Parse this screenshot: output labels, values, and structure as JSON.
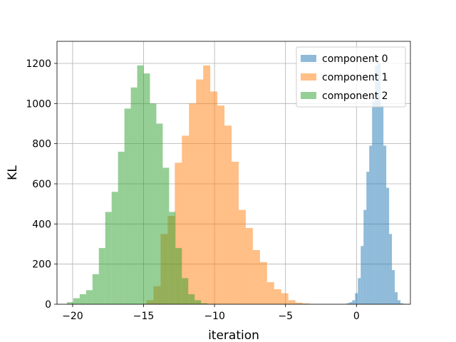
{
  "chart_data": {
    "type": "bar",
    "subtype": "histogram",
    "xlabel": "iteration",
    "ylabel": "KL",
    "xlim": [
      -21.1,
      3.8
    ],
    "ylim": [
      0,
      1310
    ],
    "xticks": [
      -20,
      -15,
      -10,
      -5,
      0
    ],
    "xtick_labels": [
      "−20",
      "−15",
      "−10",
      "−5",
      "0"
    ],
    "yticks": [
      0,
      200,
      400,
      600,
      800,
      1000,
      1200
    ],
    "ytick_labels": [
      "0",
      "200",
      "400",
      "600",
      "800",
      "1000",
      "1200"
    ],
    "grid": true,
    "legend_placement": "upper-right",
    "series": [
      {
        "name": "component 0",
        "color": "#1f77b4",
        "alpha": 0.5,
        "bin_start": -0.7,
        "bin_width": 0.2,
        "counts": [
          5,
          10,
          20,
          55,
          130,
          290,
          470,
          660,
          790,
          1010,
          1190,
          1200,
          990,
          790,
          580,
          350,
          170,
          60,
          20,
          5
        ]
      },
      {
        "name": "component 1",
        "color": "#ff7f0e",
        "alpha": 0.5,
        "bin_start": -14.8,
        "bin_width": 0.5,
        "counts": [
          20,
          90,
          350,
          440,
          705,
          840,
          1000,
          1120,
          1190,
          1060,
          990,
          890,
          710,
          470,
          380,
          270,
          210,
          110,
          75,
          55,
          20,
          8,
          4
        ]
      },
      {
        "name": "component 2",
        "color": "#2ca02c",
        "alpha": 0.5,
        "bin_start": -20.4,
        "bin_width": 0.45,
        "counts": [
          10,
          30,
          50,
          70,
          150,
          280,
          460,
          560,
          760,
          975,
          1080,
          1190,
          1150,
          1000,
          900,
          680,
          460,
          280,
          130,
          50,
          20,
          5
        ]
      }
    ]
  }
}
